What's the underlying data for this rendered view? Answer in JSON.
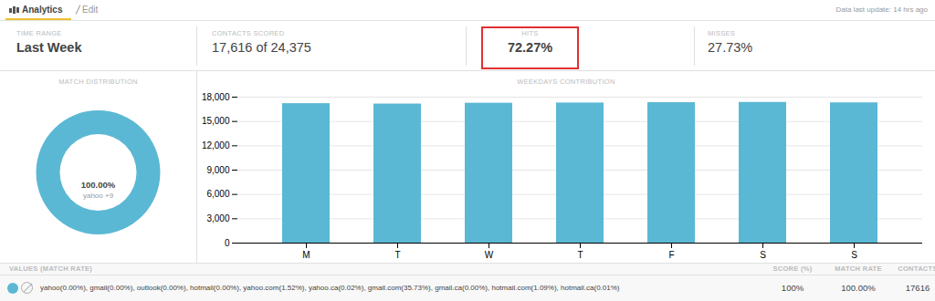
{
  "chart_data": [
    {
      "type": "pie",
      "title": "MATCH DISTRIBUTION",
      "categories": [
        "yahoo +9"
      ],
      "values": [
        100
      ],
      "value_labels": [
        "100.00%"
      ],
      "color": "#5bb8d4"
    },
    {
      "type": "bar",
      "title": "WEEKDAYS CONTRIBUTION",
      "categories": [
        "M",
        "T",
        "W",
        "T",
        "F",
        "S",
        "S"
      ],
      "values": [
        17200,
        17150,
        17250,
        17280,
        17320,
        17350,
        17300
      ],
      "color": "#5bb8d4",
      "ylim": [
        0,
        18000
      ],
      "yticks": [
        0,
        {
          "value": 3000,
          "label": "3,000"
        },
        {
          "value": 6000,
          "label": "6,000"
        },
        {
          "value": 9000,
          "label": "9,000"
        },
        {
          "value": 12000,
          "label": "12,000"
        },
        {
          "value": 15000,
          "label": "15,000"
        },
        {
          "value": 18000,
          "label": "18,000"
        }
      ],
      "grid": true,
      "annotations": [
        "Analytics",
        "Edit",
        "Data last update: 14 hrs ago",
        "TIME RANGE",
        "Last Week",
        "CONTACTS SCORED",
        "17,616 of 24,375",
        "HITS",
        "72.27%",
        "MISSES",
        "27.73%",
        "VALUES (MATCH RATE)",
        "SCORE (%)",
        "MATCH RATE",
        "CONTACTS",
        "yahoo(0.00%), gmail(0.00%), outlook(0.00%), hotmail(0.00%), yahoo.com(1.52%), yahoo.ca(0.02%), gmail.com(35.73%), gmail.ca(0.00%), hotmail.com(1.09%), hotmail.ca(0.01%)",
        "100%",
        "100.00%",
        "17616"
      ]
    }
  ]
}
